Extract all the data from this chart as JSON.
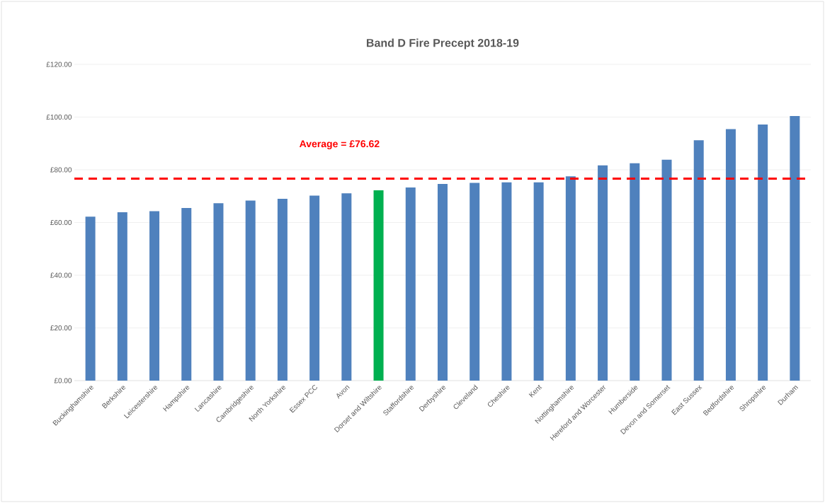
{
  "chart_data": {
    "type": "bar",
    "title": "Band D Fire Precept 2018-19",
    "categories": [
      "Buckinghamshire",
      "Berkshire",
      "Leicestershire",
      "Hampshire",
      "Lancashire",
      "Cambridgeshire",
      "North Yorkshire",
      "Essex PCC",
      "Avon",
      "Dorset and Wiltshire",
      "Staffordshire",
      "Derbyshire",
      "Cleveland",
      "Cheshire",
      "Kent",
      "Nottinghamshire",
      "Hereford and Worcester",
      "Humberside",
      "Devon and Somerset",
      "East Sussex",
      "Bedfordshire",
      "Shropshire",
      "Durham"
    ],
    "values": [
      62.2,
      63.9,
      64.3,
      65.5,
      67.3,
      68.3,
      69.0,
      70.2,
      71.1,
      72.2,
      73.3,
      74.6,
      75.0,
      75.2,
      75.2,
      77.5,
      81.7,
      82.5,
      83.8,
      91.2,
      95.4,
      97.2,
      100.4
    ],
    "colors": [
      "#4f81bd",
      "#4f81bd",
      "#4f81bd",
      "#4f81bd",
      "#4f81bd",
      "#4f81bd",
      "#4f81bd",
      "#4f81bd",
      "#4f81bd",
      "#00b050",
      "#4f81bd",
      "#4f81bd",
      "#4f81bd",
      "#4f81bd",
      "#4f81bd",
      "#4f81bd",
      "#4f81bd",
      "#4f81bd",
      "#4f81bd",
      "#4f81bd",
      "#4f81bd",
      "#4f81bd",
      "#4f81bd"
    ],
    "ylim": [
      0,
      120
    ],
    "yticks": [
      {
        "value": 0,
        "label": "£0.00"
      },
      {
        "value": 20,
        "label": "£20.00"
      },
      {
        "value": 40,
        "label": "£40.00"
      },
      {
        "value": 60,
        "label": "£60.00"
      },
      {
        "value": 80,
        "label": "£80.00"
      },
      {
        "value": 100,
        "label": "£100.00"
      },
      {
        "value": 120,
        "label": "£120.00"
      }
    ],
    "grid": "y",
    "ref_lines": [
      {
        "axis": "y",
        "value": 76.62,
        "label": "Average = £76.62",
        "color": "#ff0000",
        "line_style": "dashed"
      }
    ]
  }
}
